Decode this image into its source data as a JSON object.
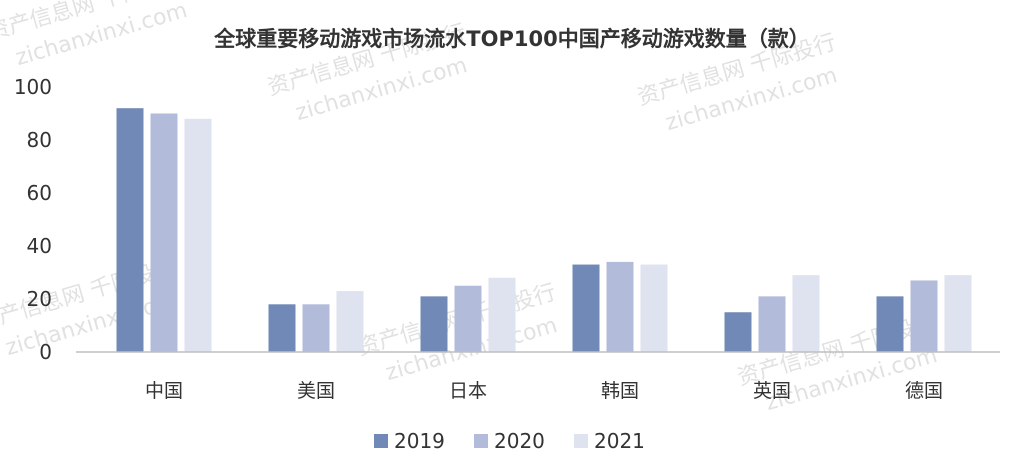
{
  "chart_data": {
    "type": "bar",
    "title": "全球重要移动游戏市场流水TOP100中国产移动游戏数量（款）",
    "categories": [
      "中国",
      "美国",
      "日本",
      "韩国",
      "英国",
      "德国"
    ],
    "series": [
      {
        "name": "2019",
        "values": [
          92,
          18,
          21,
          33,
          15,
          21
        ],
        "color": "#7189b6"
      },
      {
        "name": "2020",
        "values": [
          90,
          18,
          25,
          34,
          21,
          27
        ],
        "color": "#b3bbda"
      },
      {
        "name": "2021",
        "values": [
          88,
          23,
          28,
          33,
          29,
          29
        ],
        "color": "#dfe2ef"
      }
    ],
    "yticks": [
      "0",
      "20",
      "40",
      "60",
      "80",
      "100"
    ],
    "ylim": [
      0,
      100
    ],
    "grid": false,
    "legend_position": "bottom"
  },
  "watermark": {
    "line1": "资产信息网 千际投行",
    "line2": "zichanxinxi.com"
  }
}
